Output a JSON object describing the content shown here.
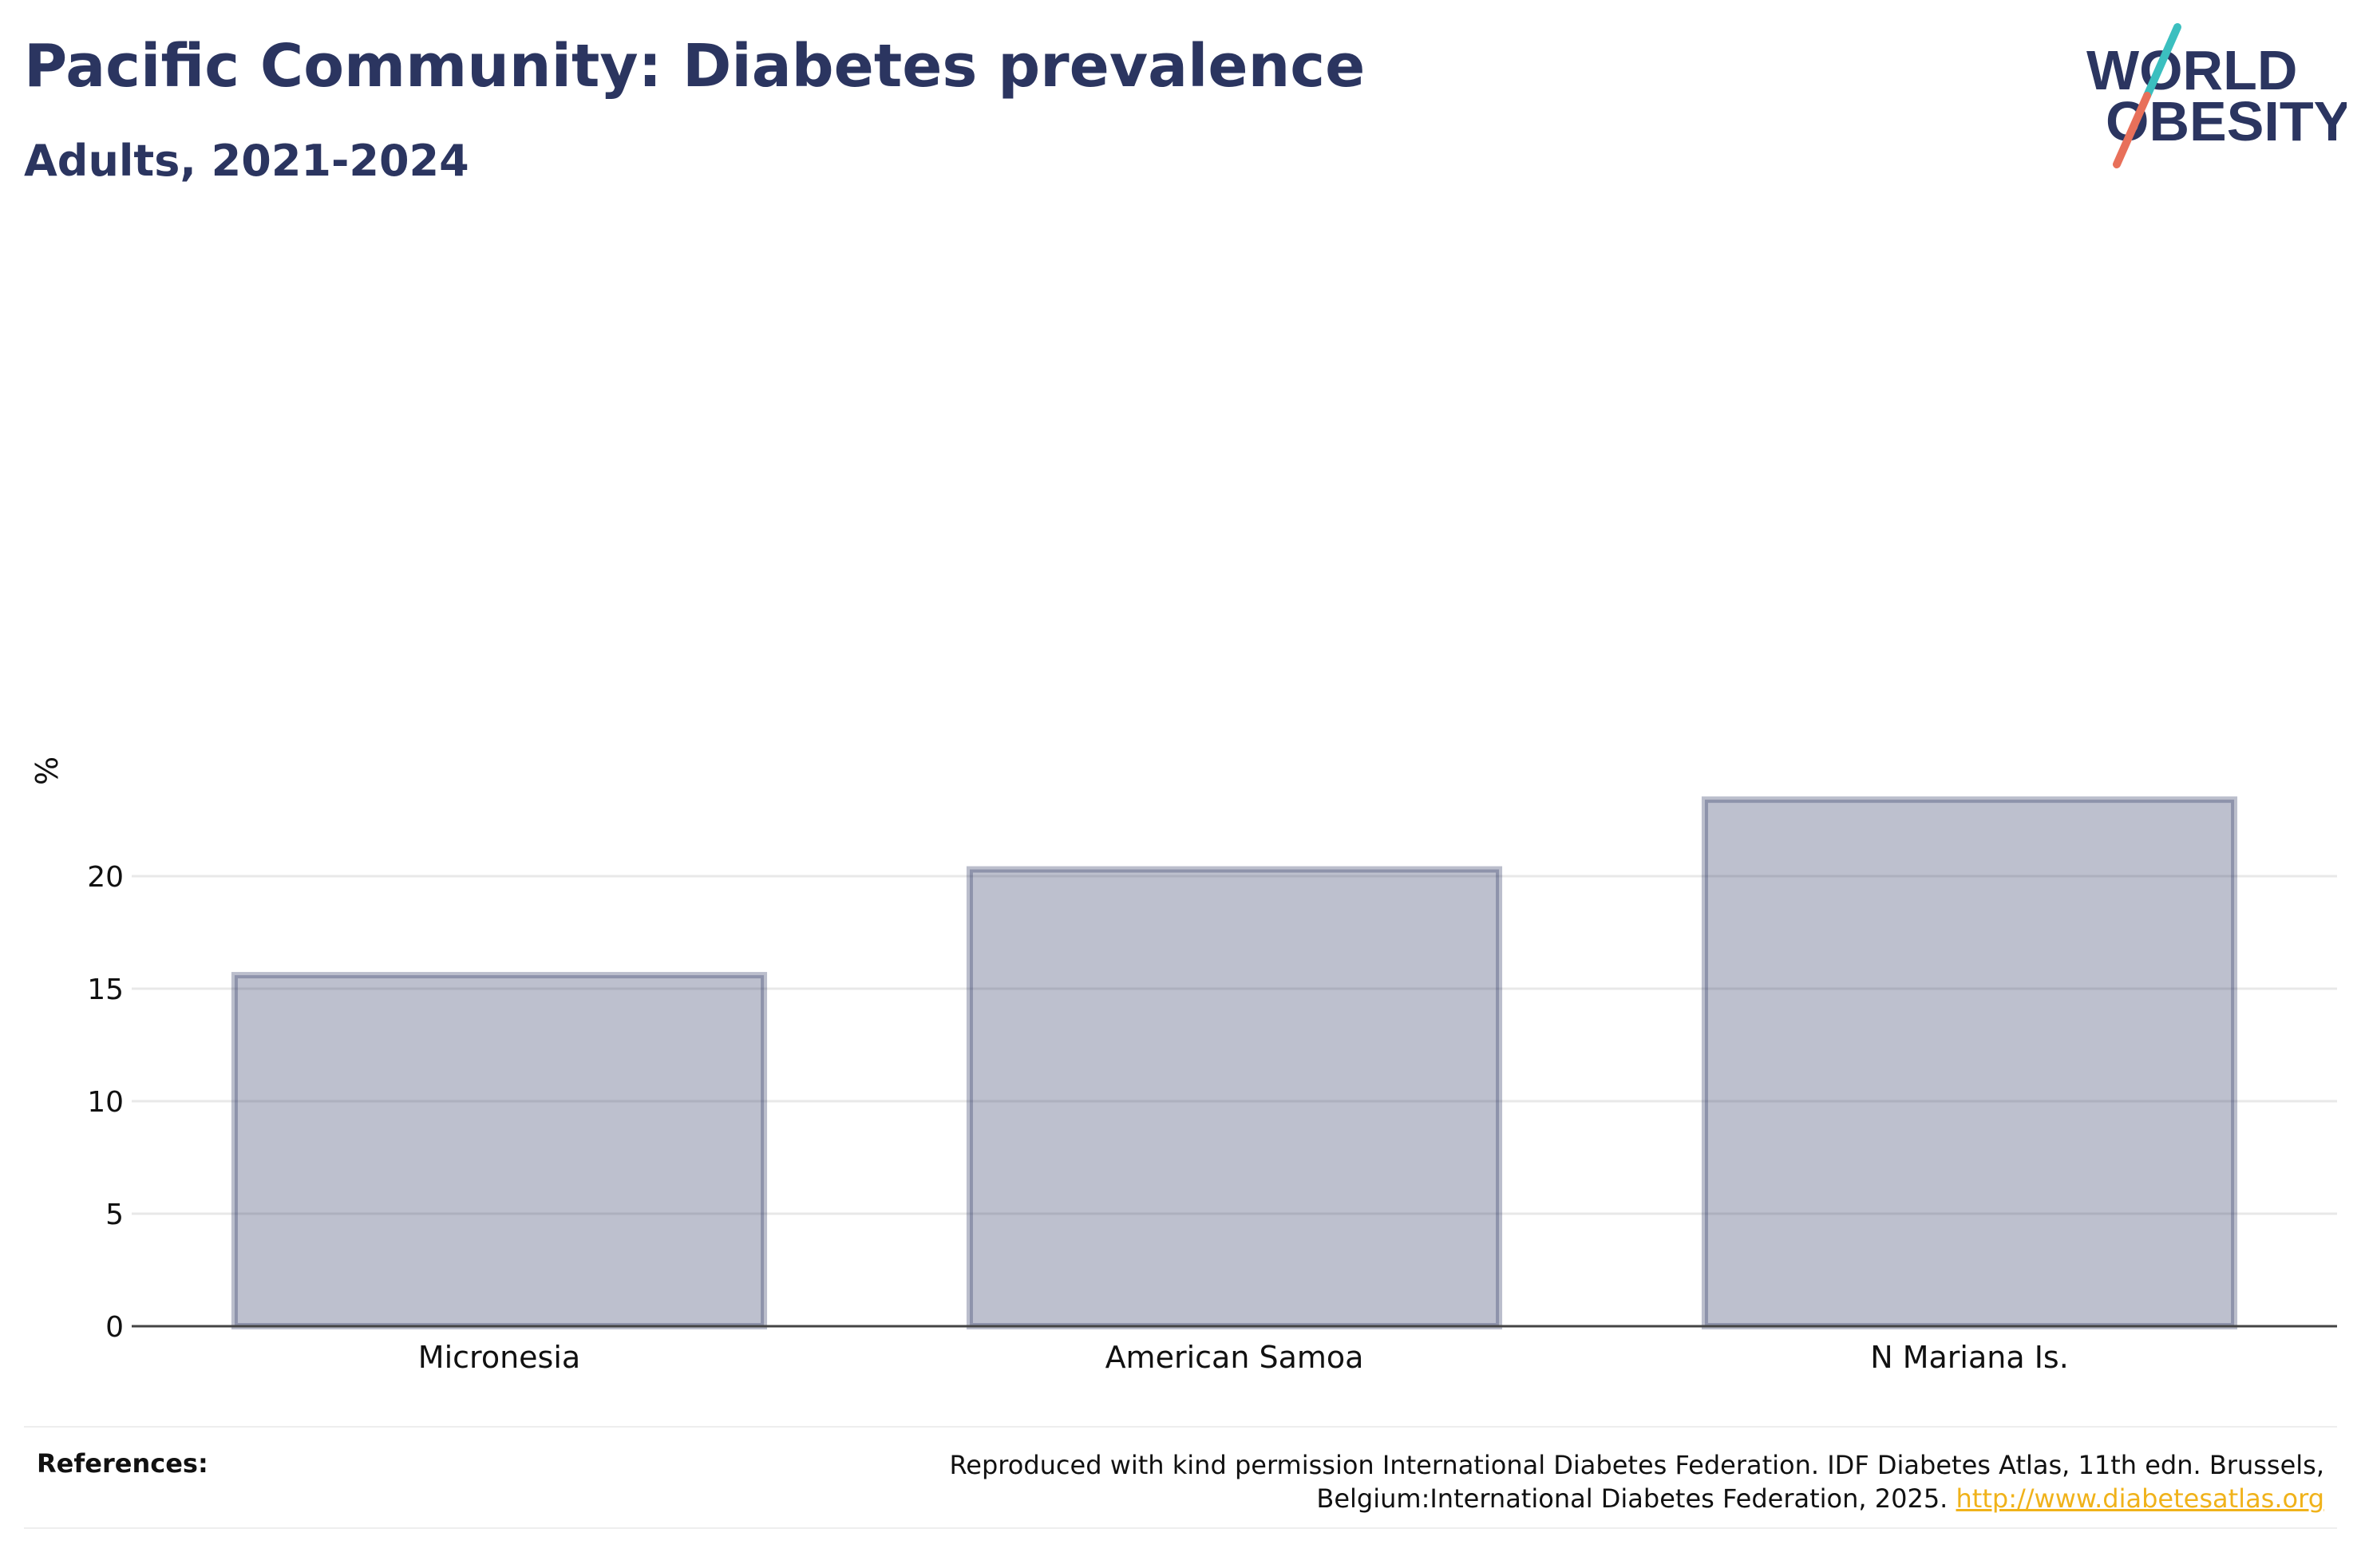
{
  "header": {
    "title": "Pacific Community: Diabetes prevalence",
    "subtitle": "Adults, 2021-2024"
  },
  "logo": {
    "line1": "WORLD",
    "line2": "OBESITY",
    "colors": {
      "text": "#2b3560",
      "slash_top": "#3bbfbf",
      "slash_bottom": "#e8705a"
    }
  },
  "chart_data": {
    "type": "bar",
    "title": "Pacific Community: Diabetes prevalence",
    "subtitle": "Adults, 2021-2024",
    "categories": [
      "Micronesia",
      "American Samoa",
      "N Mariana Is."
    ],
    "values": [
      15.6,
      20.3,
      23.4
    ],
    "ylabel": "%",
    "xlabel": "",
    "ylim": [
      0,
      25
    ],
    "yticks": [
      0,
      5,
      10,
      15,
      20
    ],
    "grid": true,
    "bar_color": "#2b3560"
  },
  "references": {
    "label": "References:",
    "text": "Reproduced with kind permission International Diabetes Federation. IDF Diabetes Atlas, 11th edn. Brussels, Belgium:International Diabetes Federation, 2025. ",
    "link": "http://www.diabetesatlas.org"
  }
}
